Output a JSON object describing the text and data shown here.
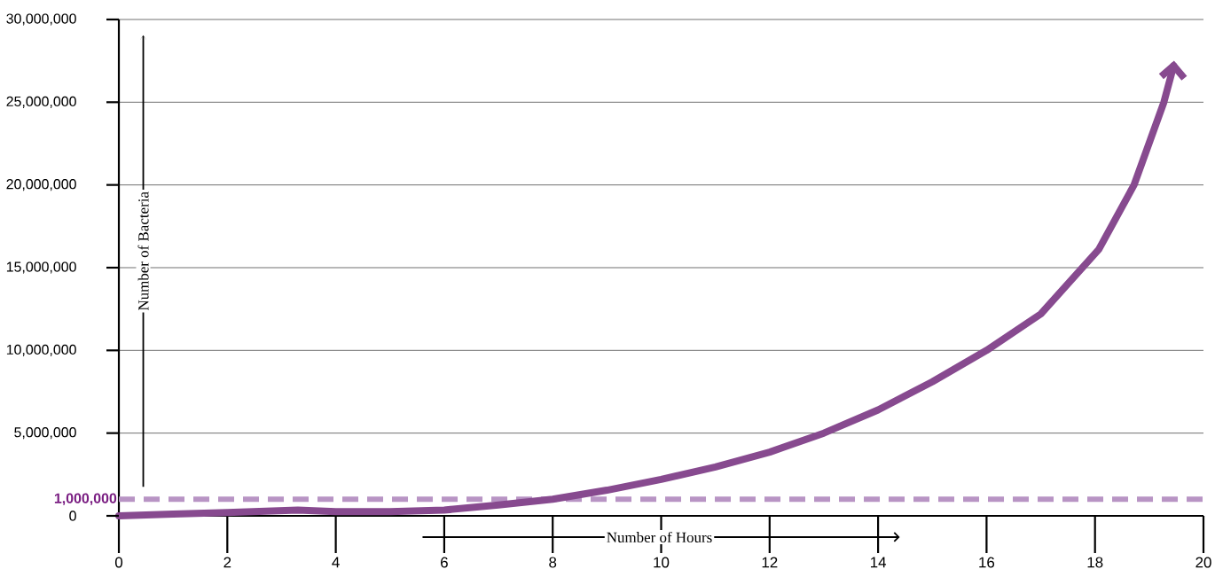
{
  "chart_data": {
    "type": "line",
    "xlabel": "Number of Hours",
    "ylabel": "Number of Bacteria",
    "x": [
      0,
      1,
      2,
      3.3,
      4,
      5,
      6,
      7,
      8,
      9,
      10,
      11,
      12,
      13,
      14,
      15,
      16,
      17,
      18.07,
      18.72,
      19.27,
      19.45
    ],
    "series": [
      {
        "color": "#874a8f",
        "values": [
          0,
          100000,
          200000,
          350000,
          250000,
          250000,
          350000,
          650000,
          1000000,
          1550000,
          2200000,
          2950000,
          3850000,
          5000000,
          6400000,
          8100000,
          10000000,
          12200000,
          16100000,
          20000000,
          25000000,
          27200000
        ]
      }
    ],
    "xlim": [
      0,
      20
    ],
    "ylim": [
      0,
      30000000
    ],
    "xticks": [
      0,
      2,
      4,
      6,
      8,
      10,
      12,
      14,
      16,
      18,
      20
    ],
    "yticks": [
      {
        "value": 0,
        "label": "0"
      },
      {
        "value": 5000000,
        "label": "5,000,000"
      },
      {
        "value": 10000000,
        "label": "10,000,000"
      },
      {
        "value": 15000000,
        "label": "15,000,000"
      },
      {
        "value": 20000000,
        "label": "20,000,000"
      },
      {
        "value": 25000000,
        "label": "25,000,000"
      },
      {
        "value": 30000000,
        "label": "30,000,000"
      }
    ],
    "ref_lines": [
      {
        "axis": "y",
        "value": 1000000,
        "label": "1,000,000",
        "color": "#b894c4",
        "line_style": "dashed"
      }
    ],
    "grid": "y",
    "marker": "none",
    "line_style": "solid"
  }
}
